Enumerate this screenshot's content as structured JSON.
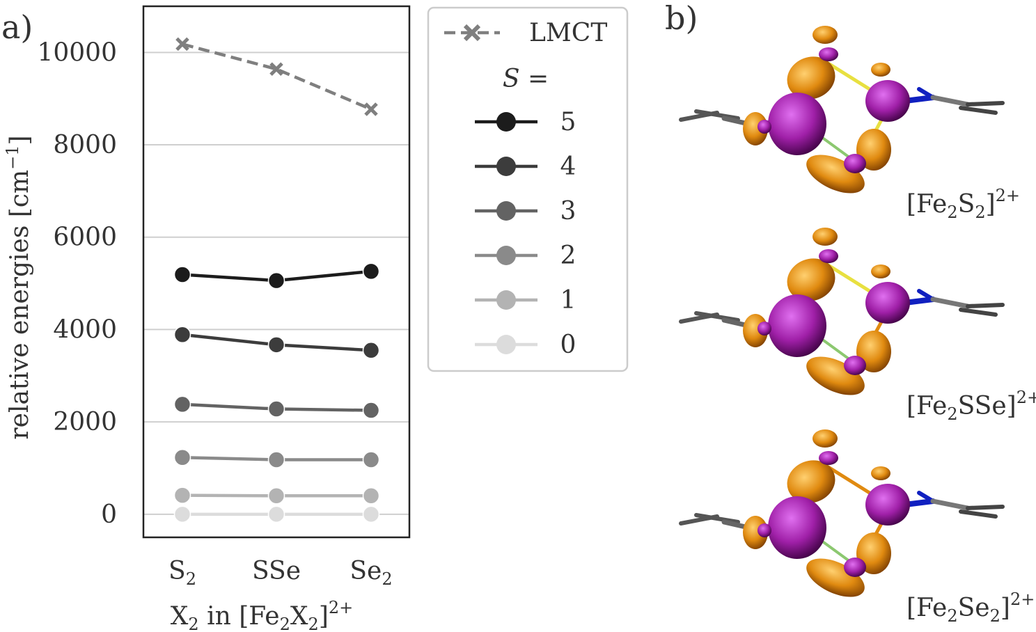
{
  "panel_labels": {
    "a": "a)",
    "b": "b)"
  },
  "chart_data": {
    "type": "line",
    "categories": [
      "S2",
      "SSe",
      "Se2"
    ],
    "category_display": [
      {
        "base": "S",
        "sub": "2",
        "rest": "",
        "rest_sub": ""
      },
      {
        "base": "SSe",
        "sub": "",
        "rest": "",
        "rest_sub": ""
      },
      {
        "base": "Se",
        "sub": "2",
        "rest": "",
        "rest_sub": ""
      }
    ],
    "xlabel": "X2 in [Fe2X2]2+",
    "xlabel_parts": {
      "a": "X",
      "a_sub": "2",
      "b": " in [Fe",
      "b_sub": "2",
      "c": "X",
      "c_sub": "2",
      "d": "]",
      "sup": "2+"
    },
    "ylabel": "relative energies [cm−1]",
    "ylabel_parts": {
      "main": "relative energies [cm",
      "sup": "−1",
      "end": "]"
    },
    "ylim": [
      -500,
      11000
    ],
    "yticks": [
      0,
      2000,
      4000,
      6000,
      8000,
      10000
    ],
    "grid": "horizontal",
    "legend_placement": "outside-right",
    "legend_subtitle": "S =",
    "series": [
      {
        "name": "LMCT",
        "values": [
          10180,
          9640,
          8770
        ],
        "color": "#7f7f7f",
        "marker": "x",
        "dash": true
      },
      {
        "name": "5",
        "values": [
          5190,
          5060,
          5260
        ],
        "color": "#1c1c1c",
        "marker": "o",
        "dash": false
      },
      {
        "name": "4",
        "values": [
          3890,
          3670,
          3550
        ],
        "color": "#3c3c3c",
        "marker": "o",
        "dash": false
      },
      {
        "name": "3",
        "values": [
          2380,
          2280,
          2250
        ],
        "color": "#636363",
        "marker": "o",
        "dash": false
      },
      {
        "name": "2",
        "values": [
          1230,
          1180,
          1180
        ],
        "color": "#8a8a8a",
        "marker": "o",
        "dash": false
      },
      {
        "name": "1",
        "values": [
          410,
          400,
          400
        ],
        "color": "#b3b3b3",
        "marker": "o",
        "dash": false
      },
      {
        "name": "0",
        "values": [
          0,
          0,
          0
        ],
        "color": "#dcdcdc",
        "marker": "o",
        "dash": false
      }
    ]
  },
  "molecule_labels": [
    {
      "pre": "[Fe",
      "sub1": "2",
      "mid": "S",
      "sub2": "2",
      "post": "]",
      "sup": "2+"
    },
    {
      "pre": "[Fe",
      "sub1": "2",
      "mid": "SSe",
      "sub2": "",
      "post": "]",
      "sup": "2+"
    },
    {
      "pre": "[Fe",
      "sub1": "2",
      "mid": "Se",
      "sub2": "2",
      "post": "]",
      "sup": "2+"
    }
  ],
  "colors": {
    "orbital_orange": "#e08a10",
    "orbital_purple": "#a020a8",
    "nitrogen_blue": "#1020c0",
    "bond_yellow": "#e8e040",
    "bond_green": "#8cc870",
    "carbon_gray": "#555555"
  }
}
